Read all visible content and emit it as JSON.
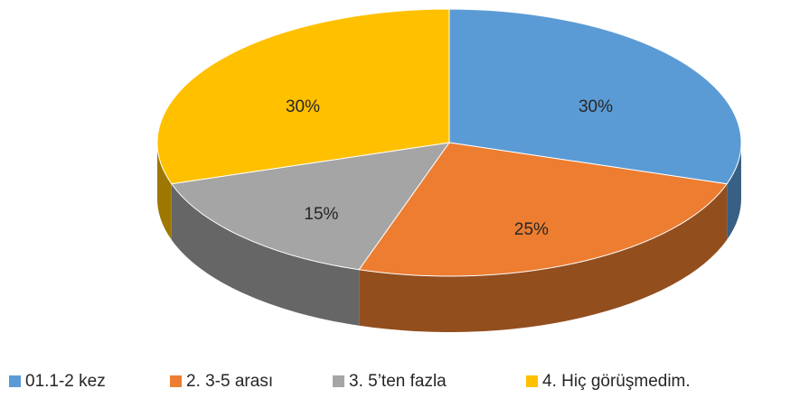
{
  "chart_data": {
    "type": "pie",
    "three_d": true,
    "categories": [
      "01.1-2 kez",
      "2. 3-5 arası",
      "3. 5’ten fazla",
      "4. Hiç görüşmedim."
    ],
    "values": [
      30,
      25,
      15,
      30
    ],
    "value_labels": [
      "30%",
      "25%",
      "15%",
      "30%"
    ],
    "colors": [
      "#5b9bd5",
      "#ed7d31",
      "#a5a5a5",
      "#ffc000"
    ],
    "legend": "bottom"
  }
}
